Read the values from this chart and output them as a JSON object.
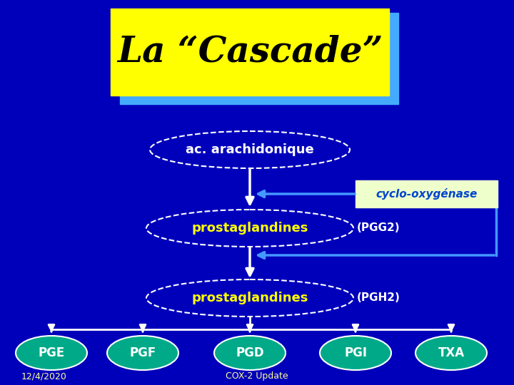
{
  "bg_color": "#0000BB",
  "title_text": "La “Cascade”",
  "title_bg": "#FFFF00",
  "title_shadow_color": "#44AAFF",
  "title_text_color": "#000000",
  "node_arachidonic": "ac. arachidonique",
  "node_arachidonic_text_color": "#FFFFFF",
  "node_prostaglandines1": "prostaglandines",
  "node_prostaglandines1_label": "(PGG2)",
  "node_prostaglandines2": "prostaglandines",
  "node_prostaglandines2_label": "(PGH2)",
  "node_ellipse_bg": "#0000BB",
  "node_ellipse_edge": "#FFFFFF",
  "node_yellow_text": "#FFFF00",
  "node_white_text": "#FFFFFF",
  "cyclo_text": "cyclo-oxygénase",
  "cyclo_bg": "#EEFFCC",
  "cyclo_text_color": "#0044CC",
  "arrow_blue": "#4499FF",
  "arrow_white": "#FFFFFF",
  "bottom_nodes": [
    "PGE",
    "PGF",
    "PGD",
    "PGI",
    "TXA"
  ],
  "bottom_node_bg": "#00AA88",
  "bottom_node_text_color": "#FFFFFF",
  "footer_left": "12/4/2020",
  "footer_center": "COX-2 Update",
  "footer_color": "#FFFF99"
}
